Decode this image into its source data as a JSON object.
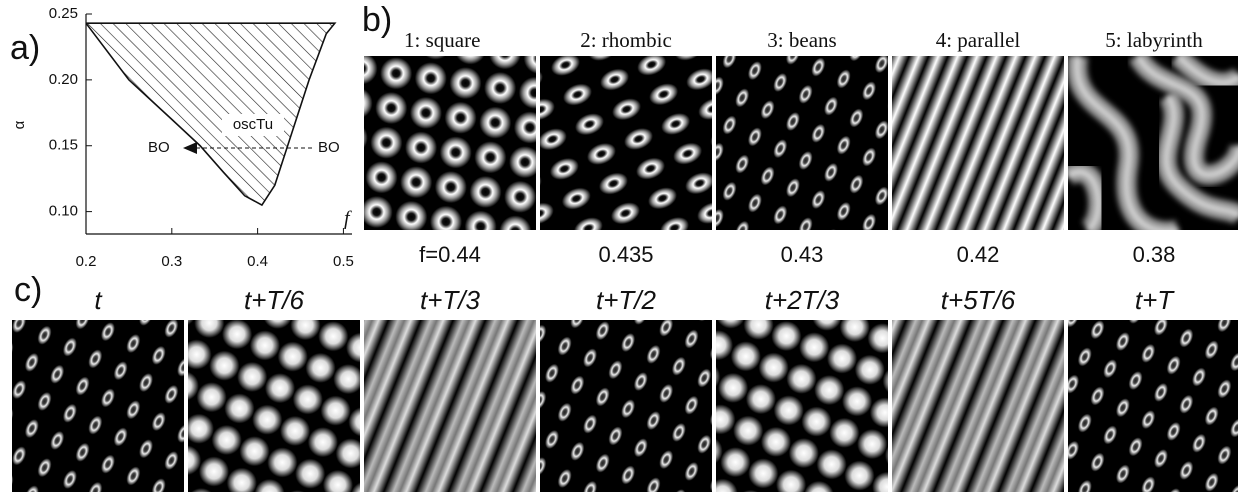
{
  "chart_data": {
    "type": "region",
    "panel_label": "a)",
    "xlabel": "f",
    "ylabel": "α",
    "x": [
      0.2,
      0.25,
      0.3,
      0.333,
      0.36,
      0.385,
      0.405,
      0.42,
      0.44,
      0.46,
      0.48,
      0.49
    ],
    "values": [
      0.243,
      0.2,
      0.17,
      0.15,
      0.13,
      0.112,
      0.105,
      0.12,
      0.16,
      0.2,
      0.235,
      0.243
    ],
    "xlim": [
      0.2,
      0.51
    ],
    "ylim": [
      0.083,
      0.25
    ],
    "xticks": [
      {
        "value": 0.2,
        "label": "0.2"
      },
      {
        "value": 0.3,
        "label": "0.3"
      },
      {
        "value": 0.4,
        "label": "0.4"
      },
      {
        "value": 0.5,
        "label": "0.5"
      }
    ],
    "yticks": [
      {
        "value": 0.1,
        "label": "0.10"
      },
      {
        "value": 0.15,
        "label": "0.15"
      },
      {
        "value": 0.2,
        "label": "0.20"
      },
      {
        "value": 0.25,
        "label": "0.25"
      }
    ],
    "annotations": [
      "oscTu",
      "BO",
      "BO"
    ]
  },
  "panel_b": {
    "label": "b)",
    "titles": [
      "1: square",
      "2: rhombic",
      "3: beans",
      "4: parallel",
      "5: labyrinth"
    ],
    "captions": [
      "f=0.44",
      "0.435",
      "0.43",
      "0.42",
      "0.38"
    ]
  },
  "panel_c": {
    "label": "c)",
    "titles": [
      "t",
      "t+T/6",
      "t+T/3",
      "t+T/2",
      "t+2T/3",
      "t+5T/6",
      "t+T"
    ]
  }
}
